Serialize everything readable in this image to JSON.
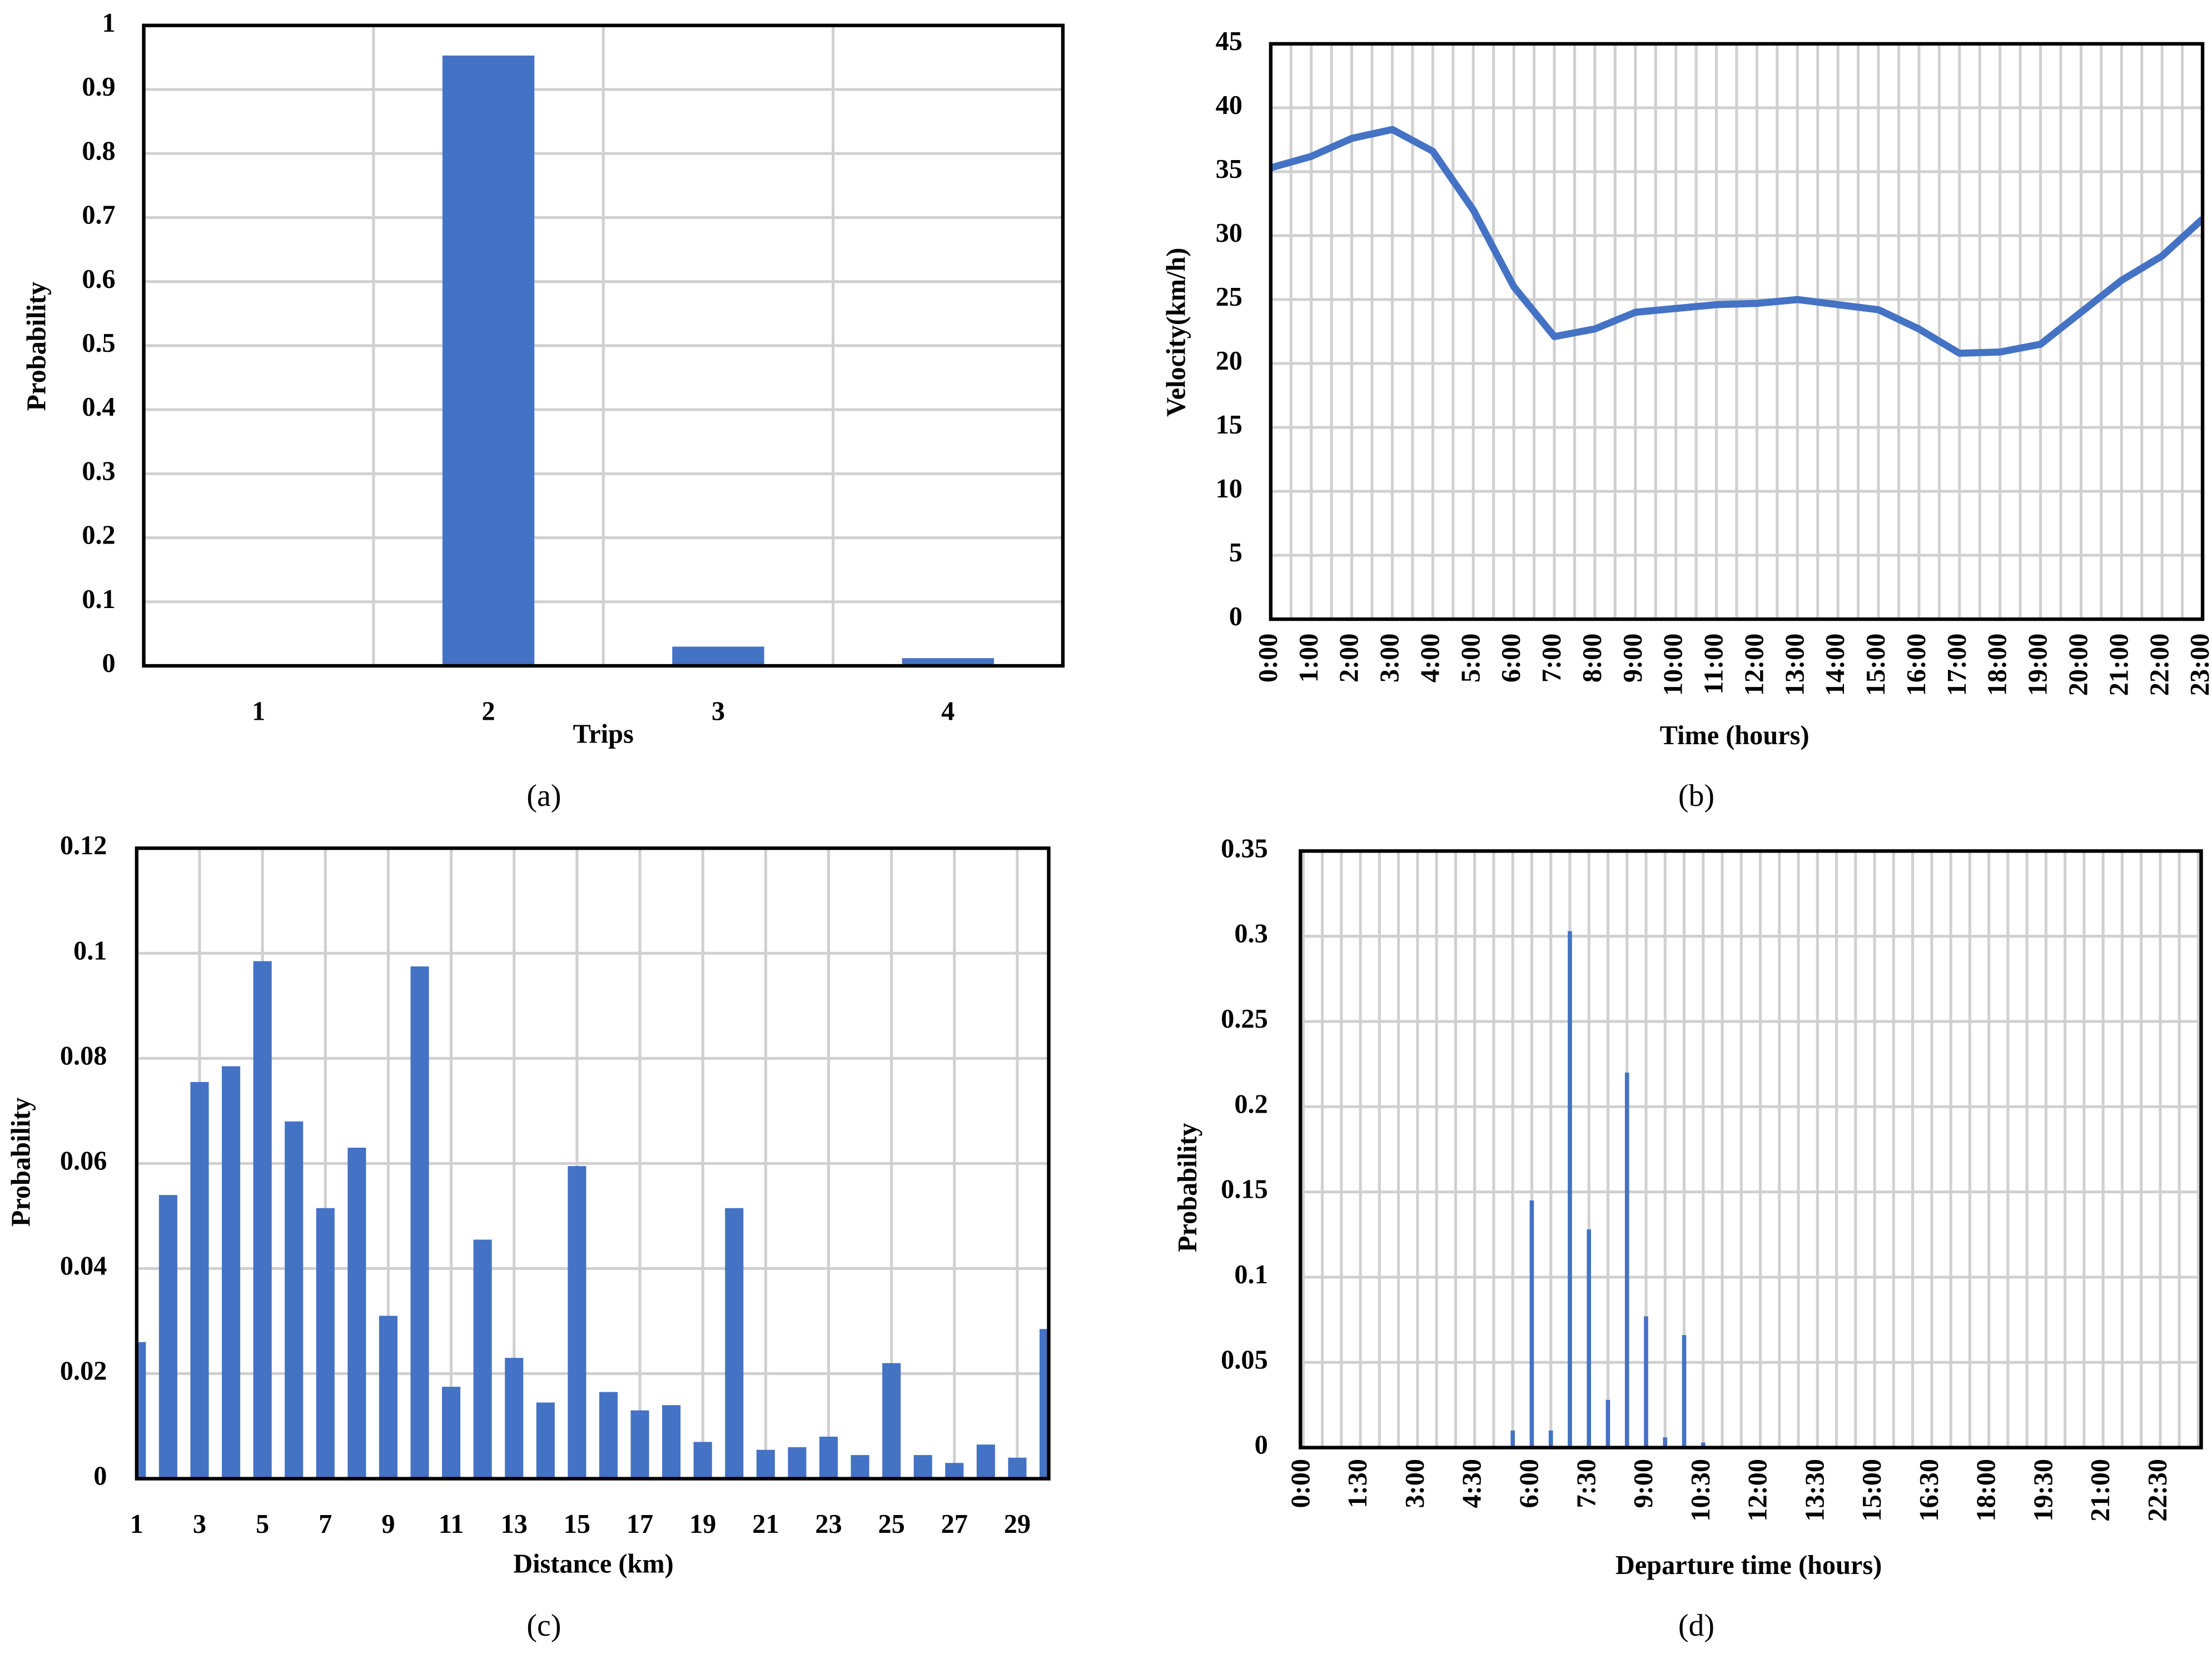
{
  "chart_data": [
    {
      "type": "bar",
      "x_label": "Trips",
      "y_label": "Probability",
      "caption": "(a)",
      "color": "#4472c4",
      "categories": [
        "1",
        "2",
        "3",
        "4"
      ],
      "values": [
        0,
        0.953,
        0.03,
        0.012
      ],
      "ylim": [
        0,
        1
      ],
      "yticks": [
        0,
        0.1,
        0.2,
        0.3,
        0.4,
        0.5,
        0.6,
        0.7,
        0.8,
        0.9,
        1
      ],
      "grid": true
    },
    {
      "type": "line",
      "x_label": "Time (hours)",
      "y_label": "Velocity(km/h)",
      "caption": "(b)",
      "color": "#4472c4",
      "categories": [
        "0:00",
        "1:00",
        "2:00",
        "3:00",
        "4:00",
        "5:00",
        "6:00",
        "7:00",
        "8:00",
        "9:00",
        "10:00",
        "11:00",
        "12:00",
        "13:00",
        "14:00",
        "15:00",
        "16:00",
        "17:00",
        "18:00",
        "19:00",
        "20:00",
        "21:00",
        "22:00",
        "23:00"
      ],
      "values": [
        35.3,
        36.2,
        37.6,
        38.3,
        36.6,
        32,
        26,
        22.1,
        22.7,
        24,
        24.3,
        24.6,
        24.7,
        25,
        24.6,
        24.2,
        22.7,
        20.8,
        20.9,
        21.5,
        24,
        26.5,
        28.4,
        31.3
      ],
      "ylim": [
        0,
        45
      ],
      "yticks": [
        0,
        5,
        10,
        15,
        20,
        25,
        30,
        35,
        40,
        45
      ],
      "grid": true
    },
    {
      "type": "bar",
      "x_label": "Distance (km)",
      "y_label": "Probability",
      "caption": "(c)",
      "color": "#4472c4",
      "categories": [
        "1",
        null,
        "3",
        null,
        "5",
        null,
        "7",
        null,
        "9",
        null,
        "11",
        null,
        "13",
        null,
        "15",
        null,
        "17",
        null,
        "19",
        null,
        "21",
        null,
        "23",
        null,
        "25",
        null,
        "27",
        null,
        "29",
        null
      ],
      "values": [
        0.026,
        0.054,
        0.0755,
        0.0785,
        0.0985,
        0.068,
        0.0515,
        0.063,
        0.031,
        0.0975,
        0.0175,
        0.0455,
        0.023,
        0.0145,
        0.0595,
        0.0165,
        0.013,
        0.014,
        0.007,
        0.0515,
        0.0055,
        0.006,
        0.008,
        0.0045,
        0.022,
        0.0045,
        0.003,
        0.0065,
        0.004,
        0.0285
      ],
      "ylim": [
        0,
        0.12
      ],
      "yticks": [
        0,
        0.02,
        0.04,
        0.06,
        0.08,
        0.1,
        0.12
      ],
      "grid": true
    },
    {
      "type": "bar",
      "x_label": "Departure time (hours)",
      "y_label": "Probability",
      "caption": "(d)",
      "color": "#4472c4",
      "categories": [
        "0:00",
        null,
        null,
        "1:30",
        null,
        null,
        "3:00",
        null,
        null,
        "4:30",
        null,
        null,
        "6:00",
        null,
        null,
        "7:30",
        null,
        null,
        "9:00",
        null,
        null,
        "10:30",
        null,
        null,
        "12:00",
        null,
        null,
        "13:30",
        null,
        null,
        "15:00",
        null,
        null,
        "16:30",
        null,
        null,
        "18:00",
        null,
        null,
        "19:30",
        null,
        null,
        "21:00",
        null,
        null,
        "22:30",
        null,
        null
      ],
      "values": [
        0,
        0,
        0,
        0,
        0,
        0,
        0,
        0,
        0,
        0,
        0,
        0.01,
        0.145,
        0.01,
        0.303,
        0.128,
        0.028,
        0.22,
        0.077,
        0.006,
        0.066,
        0.003,
        0,
        0,
        0,
        0,
        0,
        0,
        0,
        0,
        0,
        0,
        0,
        0,
        0,
        0,
        0,
        0,
        0,
        0,
        0,
        0,
        0,
        0,
        0,
        0,
        0,
        0
      ],
      "ylim": [
        0,
        0.35
      ],
      "yticks": [
        0,
        0.05,
        0.1,
        0.15,
        0.2,
        0.25,
        0.3,
        0.35
      ],
      "grid": true
    }
  ]
}
